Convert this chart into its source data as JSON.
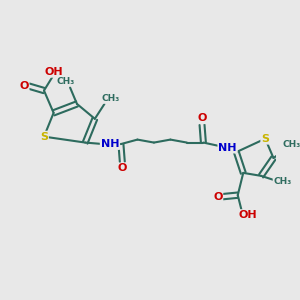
{
  "bg_color": "#e8e8e8",
  "bond_color": "#2d6b5e",
  "S_color": "#c8b400",
  "N_color": "#0000cc",
  "O_color": "#cc0000",
  "text_color": "#2d6b5e",
  "line_width": 1.5,
  "font_size": 8.0,
  "figsize": [
    3.0,
    3.0
  ],
  "dpi": 100,
  "xlim": [
    0,
    10
  ],
  "ylim": [
    0,
    10
  ]
}
